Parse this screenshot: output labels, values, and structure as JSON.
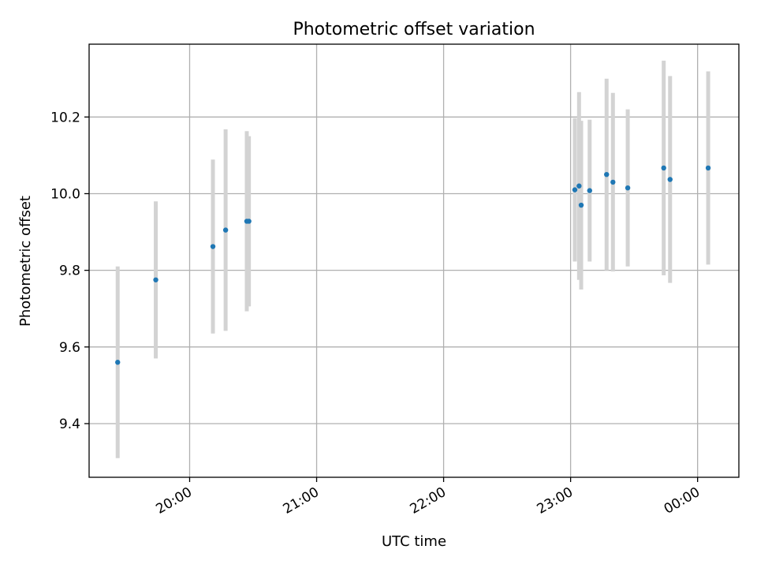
{
  "chart_data": {
    "type": "scatter",
    "title": "Photometric offset variation",
    "xlabel": "UTC time",
    "ylabel": "Photometric offset",
    "xlim": [
      "19:12:30",
      "00:19:30"
    ],
    "ylim": [
      9.26,
      10.39
    ],
    "x_ticks": [
      "20:00",
      "21:00",
      "22:00",
      "23:00",
      "00:00"
    ],
    "y_ticks": [
      "9.4",
      "9.6",
      "9.8",
      "10.0",
      "10.2"
    ],
    "grid": true,
    "marker_color": "#1f77b4",
    "errorbar_color": "#d3d3d3",
    "points": [
      {
        "t": "19:26",
        "y": 9.56,
        "err": 0.25
      },
      {
        "t": "19:44",
        "y": 9.775,
        "err": 0.205
      },
      {
        "t": "20:11",
        "y": 9.862,
        "err": 0.227
      },
      {
        "t": "20:17",
        "y": 9.905,
        "err": 0.263
      },
      {
        "t": "20:27",
        "y": 9.928,
        "err": 0.235
      },
      {
        "t": "20:28",
        "y": 9.928,
        "err": 0.222
      },
      {
        "t": "23:02",
        "y": 10.01,
        "err": 0.187
      },
      {
        "t": "23:04",
        "y": 10.02,
        "err": 0.245
      },
      {
        "t": "23:05",
        "y": 9.97,
        "err": 0.22
      },
      {
        "t": "23:09",
        "y": 10.008,
        "err": 0.185
      },
      {
        "t": "23:17",
        "y": 10.05,
        "err": 0.25
      },
      {
        "t": "23:20",
        "y": 10.03,
        "err": 0.233
      },
      {
        "t": "23:27",
        "y": 10.015,
        "err": 0.205
      },
      {
        "t": "23:44",
        "y": 10.067,
        "err": 0.28
      },
      {
        "t": "23:47",
        "y": 10.037,
        "err": 0.27
      },
      {
        "t": "00:05",
        "y": 10.067,
        "err": 0.252
      }
    ]
  }
}
